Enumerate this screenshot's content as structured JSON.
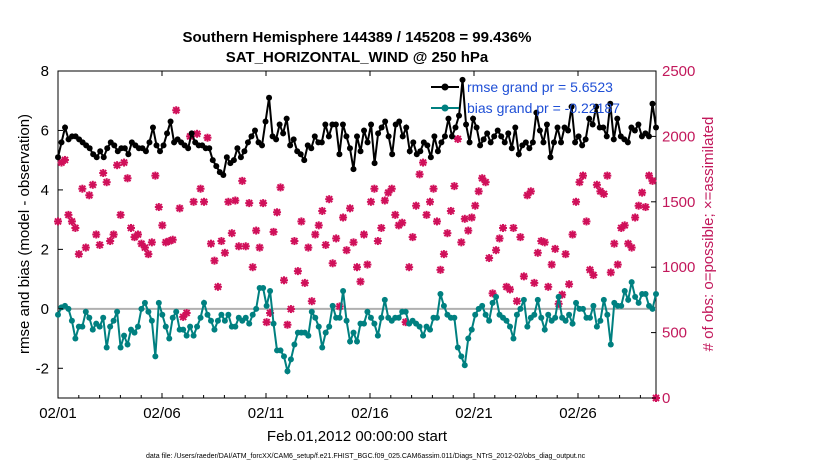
{
  "chart_data": {
    "type": "line",
    "title": "Southern Hemisphere 144389 / 145208 = 99.436%",
    "subtitle": "SAT_HORIZONTAL_WIND @ 250 hPa",
    "xlabel": "Feb.01,2012 00:00:00 start",
    "ylabel": "rmse and bias (model - observation)",
    "ylabel_right": "# of obs: o=possible; ×=assimilated",
    "footer": "data file: /Users/raeder/DAI/ATM_forcXX/CAM6_setup/f.e21.FHIST_BGC.f09_025.CAM6assim.011/Diags_NTrS_2012-02/obs_diag_output.nc",
    "x_ticks": [
      "02/01",
      "02/06",
      "02/11",
      "02/16",
      "02/21",
      "02/26"
    ],
    "x_range_days": [
      1,
      29.75
    ],
    "x_unit": "day of February 2012 (fractional)",
    "y_ticks": [
      "8",
      "6",
      "4",
      "2",
      "0",
      "-2"
    ],
    "ylim": [
      -3,
      8
    ],
    "y_right_ticks": [
      "2500",
      "2000",
      "1500",
      "1000",
      "500",
      "0"
    ],
    "y_right_lim": [
      0,
      2500
    ],
    "grid": false,
    "legend_position": "top-right",
    "colors": {
      "rmse": "#000000",
      "bias": "#008080",
      "obs": "#d0105a",
      "zero": "#b0b0b0",
      "legend_text": "#1f4fd6"
    },
    "series": [
      {
        "name": "rmse grand pr = 5.6523",
        "color": "#000000",
        "values": [
          5.1,
          5.6,
          6.1,
          5.7,
          5.8,
          5.8,
          5.7,
          5.6,
          5.5,
          5.4,
          5.2,
          5.1,
          5.3,
          5.1,
          5.4,
          5.6,
          5.5,
          5.3,
          5.4,
          5.4,
          5.2,
          5.6,
          5.5,
          5.4,
          5.4,
          5.3,
          5.6,
          6.1,
          5.5,
          5.3,
          5.5,
          5.9,
          6.3,
          5.6,
          5.7,
          5.6,
          5.5,
          5.4,
          5.9,
          5.6,
          5.5,
          5.5,
          5.4,
          5.4,
          5.0,
          4.8,
          4.6,
          4.5,
          5.1,
          4.9,
          5.0,
          5.4,
          5.1,
          5.3,
          5.6,
          5.8,
          6.0,
          5.6,
          5.5,
          6.3,
          7.1,
          5.8,
          5.7,
          6.2,
          5.9,
          6.4,
          5.5,
          5.7,
          5.3,
          5.2,
          5.0,
          5.5,
          5.4,
          5.8,
          5.6,
          5.6,
          6.2,
          5.8,
          6.2,
          6.2,
          5.2,
          6.2,
          5.8,
          5.4,
          4.7,
          5.8,
          5.3,
          6.0,
          5.6,
          6.2,
          4.9,
          5.9,
          6.1,
          6.3,
          5.8,
          5.2,
          6.2,
          6.3,
          5.8,
          6.1,
          5.3,
          5.6,
          5.2,
          5.3,
          5.6,
          5.5,
          5.1,
          5.8,
          5.3,
          5.6,
          5.8,
          6.4,
          5.8,
          6.1,
          6.5,
          7.7,
          6.2,
          5.6,
          6.4,
          6.1,
          5.5,
          5.7,
          5.9,
          5.6,
          5.8,
          6.0,
          5.8,
          5.6,
          5.9,
          5.4,
          6.1,
          5.2,
          5.5,
          5.6,
          5.4,
          5.6,
          6.6,
          6.0,
          5.6,
          6.2,
          5.1,
          5.6,
          6.1,
          5.6,
          6.1,
          6.0,
          6.8,
          5.6,
          5.8,
          5.5,
          5.7,
          6.4,
          6.2,
          6.8,
          6.1,
          6.1,
          5.8,
          6.9,
          5.7,
          6.4,
          5.8,
          5.7,
          5.6,
          6.1,
          6.0,
          6.2,
          5.8,
          5.9,
          5.8,
          6.9,
          6.1
        ]
      },
      {
        "name": "bias grand pr = -0.22187",
        "color": "#008080",
        "values": [
          -0.2,
          0.05,
          0.1,
          0.0,
          -0.4,
          -1.0,
          -0.6,
          -0.6,
          -0.1,
          -0.3,
          -0.7,
          -0.5,
          -0.6,
          -0.3,
          -1.3,
          -0.6,
          -0.4,
          -0.1,
          -1.3,
          -0.9,
          -1.2,
          -0.7,
          -0.8,
          -0.6,
          0.0,
          0.2,
          -0.1,
          -0.4,
          -1.6,
          0.2,
          -0.2,
          -0.6,
          -1.0,
          -0.3,
          -0.1,
          -0.7,
          -0.7,
          -0.9,
          -0.6,
          -0.9,
          -0.6,
          -0.3,
          0.2,
          -0.2,
          -0.4,
          -0.7,
          -0.4,
          -0.2,
          -0.4,
          -0.2,
          -0.6,
          -0.6,
          -0.3,
          -0.4,
          -0.3,
          -0.5,
          -0.2,
          0.0,
          0.7,
          0.7,
          0.1,
          0.6,
          -0.5,
          -1.4,
          -1.4,
          -1.6,
          -2.1,
          -1.7,
          -1.2,
          -0.8,
          -0.8,
          -0.8,
          -0.9,
          -0.1,
          -0.3,
          -0.6,
          -1.3,
          -0.8,
          -0.6,
          0.1,
          -0.3,
          -0.3,
          0.6,
          -0.4,
          -1.1,
          -0.8,
          -1.1,
          -0.5,
          -0.5,
          -0.1,
          -0.3,
          -0.5,
          -0.9,
          -0.3,
          0.3,
          -0.3,
          -0.4,
          -0.3,
          -0.3,
          -0.1,
          -0.1,
          -0.5,
          -0.4,
          -0.5,
          -0.6,
          -0.9,
          -0.6,
          -0.7,
          -0.3,
          -0.3,
          0.5,
          0.1,
          -0.2,
          -0.3,
          -0.3,
          -1.3,
          -1.6,
          -1.9,
          -1.0,
          -0.7,
          -0.2,
          0.0,
          0.1,
          -0.2,
          -0.4,
          0.2,
          0.4,
          -0.2,
          -0.3,
          -0.4,
          -0.6,
          -1.0,
          -0.2,
          0.0,
          0.3,
          -0.6,
          -0.3,
          -0.2,
          0.3,
          -0.3,
          -0.7,
          -0.2,
          -0.4,
          -0.3,
          0.4,
          -0.3,
          -0.4,
          -0.2,
          -0.5,
          0.2,
          0.0,
          0.0,
          -0.3,
          -0.3,
          0.1,
          -0.6,
          -0.4,
          0.3,
          -0.2,
          -1.2,
          0.2,
          0.1,
          0.1,
          0.6,
          0.3,
          0.9,
          0.4,
          0.2,
          0.5,
          0.5,
          0.1,
          0.0,
          0.5
        ]
      },
      {
        "name": "# of obs assimilated",
        "color": "#d0105a",
        "axis": "right",
        "values": [
          1350,
          1800,
          1820,
          1400,
          1350,
          1300,
          1100,
          1600,
          1150,
          1550,
          1630,
          1250,
          1170,
          1720,
          1650,
          1200,
          1250,
          1780,
          1400,
          1800,
          1680,
          1300,
          1230,
          1250,
          1180,
          1150,
          1100,
          1190,
          1700,
          1460,
          1320,
          1190,
          1200,
          1210,
          2200,
          1450,
          620,
          650,
          2000,
          1500,
          2020,
          1600,
          1500,
          1990,
          1180,
          1050,
          850,
          1200,
          1110,
          1500,
          1260,
          1510,
          1160,
          1660,
          1160,
          1490,
          1000,
          1280,
          1150,
          1490,
          580,
          650,
          1270,
          1420,
          1610,
          900,
          560,
          680,
          1200,
          970,
          1350,
          880,
          1150,
          740,
          1250,
          1320,
          1430,
          1170,
          1520,
          1030,
          1220,
          700,
          1380,
          1130,
          1450,
          1190,
          1000,
          890,
          1250,
          1020,
          1500,
          1600,
          1200,
          1300,
          1510,
          1570,
          1600,
          1400,
          1320,
          1340,
          580,
          1000,
          1230,
          1470,
          1710,
          1800,
          1400,
          1500,
          1600,
          1350,
          980,
          1100,
          1260,
          1430,
          1620,
          1980,
          1190,
          1370,
          1280,
          1380,
          1470,
          1580,
          1680,
          1650,
          1070,
          800,
          1130,
          1220,
          1300,
          850,
          830,
          1300,
          740,
          1230,
          930,
          1550,
          1580,
          880,
          1110,
          1200,
          1190,
          850,
          1020,
          1140,
          720,
          790,
          1100,
          870,
          1250,
          1500,
          1650,
          1700,
          1350,
          980,
          940,
          1630,
          1580,
          1560,
          1700,
          960,
          1180,
          1020,
          1300,
          1320,
          1180,
          1150,
          1380,
          1470,
          1570,
          1460,
          1700,
          1660,
          0
        ]
      }
    ]
  }
}
